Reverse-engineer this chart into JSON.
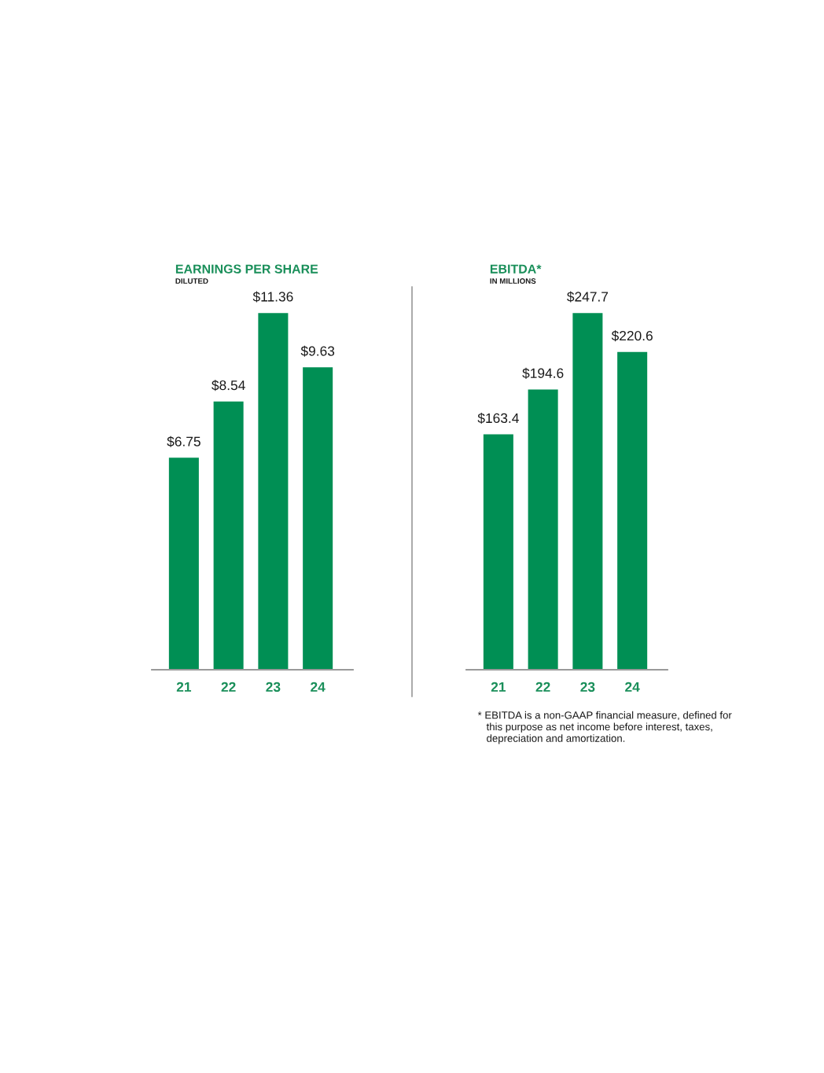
{
  "chart_data": [
    {
      "type": "bar",
      "title": "EARNINGS PER SHARE",
      "subtitle": "DILUTED",
      "categories": [
        "21",
        "22",
        "23",
        "24"
      ],
      "values": [
        6.75,
        8.54,
        11.36,
        9.63
      ],
      "value_labels": [
        "$6.75",
        "$8.54",
        "$11.36",
        "$9.63"
      ],
      "color": "#008f54",
      "tick_labels": "x"
    },
    {
      "type": "bar",
      "title": "EBITDA*",
      "subtitle": "IN MILLIONS",
      "categories": [
        "21",
        "22",
        "23",
        "24"
      ],
      "values": [
        163.4,
        194.6,
        247.7,
        220.6
      ],
      "value_labels": [
        "$163.4",
        "$194.6",
        "$247.7",
        "$220.6"
      ],
      "color": "#008f54",
      "tick_labels": "x",
      "annotations": [
        "* EBITDA is a non-GAAP financial measure, defined for\n   this purpose as net income before interest, taxes,\n   depreciation and amortization."
      ]
    }
  ]
}
